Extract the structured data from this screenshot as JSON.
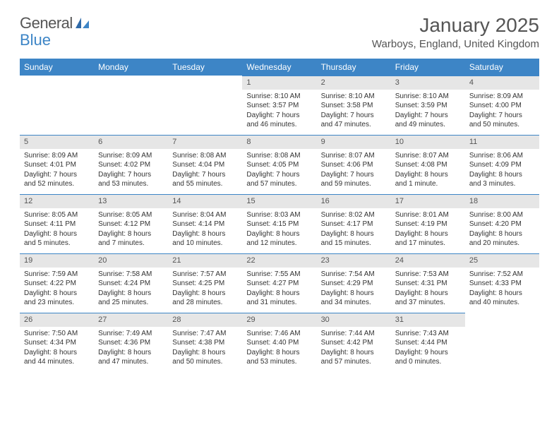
{
  "logo": {
    "word1": "General",
    "word2": "Blue"
  },
  "title": {
    "month": "January 2025",
    "location": "Warboys, England, United Kingdom"
  },
  "colors": {
    "header_bg": "#3d85c6",
    "header_text": "#ffffff",
    "dayrow_bg": "#e6e6e6",
    "text": "#333333",
    "rule": "#3d85c6"
  },
  "day_headers": [
    "Sunday",
    "Monday",
    "Tuesday",
    "Wednesday",
    "Thursday",
    "Friday",
    "Saturday"
  ],
  "first_weekday_index": 3,
  "days": [
    {
      "n": 1,
      "sr": "8:10 AM",
      "ss": "3:57 PM",
      "dl": "7 hours and 46 minutes."
    },
    {
      "n": 2,
      "sr": "8:10 AM",
      "ss": "3:58 PM",
      "dl": "7 hours and 47 minutes."
    },
    {
      "n": 3,
      "sr": "8:10 AM",
      "ss": "3:59 PM",
      "dl": "7 hours and 49 minutes."
    },
    {
      "n": 4,
      "sr": "8:09 AM",
      "ss": "4:00 PM",
      "dl": "7 hours and 50 minutes."
    },
    {
      "n": 5,
      "sr": "8:09 AM",
      "ss": "4:01 PM",
      "dl": "7 hours and 52 minutes."
    },
    {
      "n": 6,
      "sr": "8:09 AM",
      "ss": "4:02 PM",
      "dl": "7 hours and 53 minutes."
    },
    {
      "n": 7,
      "sr": "8:08 AM",
      "ss": "4:04 PM",
      "dl": "7 hours and 55 minutes."
    },
    {
      "n": 8,
      "sr": "8:08 AM",
      "ss": "4:05 PM",
      "dl": "7 hours and 57 minutes."
    },
    {
      "n": 9,
      "sr": "8:07 AM",
      "ss": "4:06 PM",
      "dl": "7 hours and 59 minutes."
    },
    {
      "n": 10,
      "sr": "8:07 AM",
      "ss": "4:08 PM",
      "dl": "8 hours and 1 minute."
    },
    {
      "n": 11,
      "sr": "8:06 AM",
      "ss": "4:09 PM",
      "dl": "8 hours and 3 minutes."
    },
    {
      "n": 12,
      "sr": "8:05 AM",
      "ss": "4:11 PM",
      "dl": "8 hours and 5 minutes."
    },
    {
      "n": 13,
      "sr": "8:05 AM",
      "ss": "4:12 PM",
      "dl": "8 hours and 7 minutes."
    },
    {
      "n": 14,
      "sr": "8:04 AM",
      "ss": "4:14 PM",
      "dl": "8 hours and 10 minutes."
    },
    {
      "n": 15,
      "sr": "8:03 AM",
      "ss": "4:15 PM",
      "dl": "8 hours and 12 minutes."
    },
    {
      "n": 16,
      "sr": "8:02 AM",
      "ss": "4:17 PM",
      "dl": "8 hours and 15 minutes."
    },
    {
      "n": 17,
      "sr": "8:01 AM",
      "ss": "4:19 PM",
      "dl": "8 hours and 17 minutes."
    },
    {
      "n": 18,
      "sr": "8:00 AM",
      "ss": "4:20 PM",
      "dl": "8 hours and 20 minutes."
    },
    {
      "n": 19,
      "sr": "7:59 AM",
      "ss": "4:22 PM",
      "dl": "8 hours and 23 minutes."
    },
    {
      "n": 20,
      "sr": "7:58 AM",
      "ss": "4:24 PM",
      "dl": "8 hours and 25 minutes."
    },
    {
      "n": 21,
      "sr": "7:57 AM",
      "ss": "4:25 PM",
      "dl": "8 hours and 28 minutes."
    },
    {
      "n": 22,
      "sr": "7:55 AM",
      "ss": "4:27 PM",
      "dl": "8 hours and 31 minutes."
    },
    {
      "n": 23,
      "sr": "7:54 AM",
      "ss": "4:29 PM",
      "dl": "8 hours and 34 minutes."
    },
    {
      "n": 24,
      "sr": "7:53 AM",
      "ss": "4:31 PM",
      "dl": "8 hours and 37 minutes."
    },
    {
      "n": 25,
      "sr": "7:52 AM",
      "ss": "4:33 PM",
      "dl": "8 hours and 40 minutes."
    },
    {
      "n": 26,
      "sr": "7:50 AM",
      "ss": "4:34 PM",
      "dl": "8 hours and 44 minutes."
    },
    {
      "n": 27,
      "sr": "7:49 AM",
      "ss": "4:36 PM",
      "dl": "8 hours and 47 minutes."
    },
    {
      "n": 28,
      "sr": "7:47 AM",
      "ss": "4:38 PM",
      "dl": "8 hours and 50 minutes."
    },
    {
      "n": 29,
      "sr": "7:46 AM",
      "ss": "4:40 PM",
      "dl": "8 hours and 53 minutes."
    },
    {
      "n": 30,
      "sr": "7:44 AM",
      "ss": "4:42 PM",
      "dl": "8 hours and 57 minutes."
    },
    {
      "n": 31,
      "sr": "7:43 AM",
      "ss": "4:44 PM",
      "dl": "9 hours and 0 minutes."
    }
  ],
  "labels": {
    "sunrise": "Sunrise:",
    "sunset": "Sunset:",
    "daylight": "Daylight:"
  }
}
